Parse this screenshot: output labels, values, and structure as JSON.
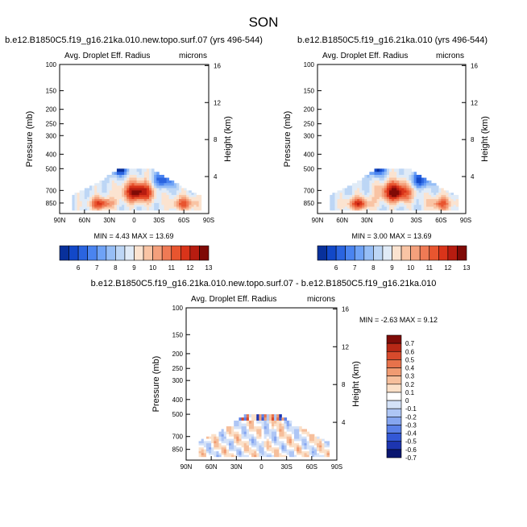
{
  "page": {
    "season": "SON"
  },
  "colors": {
    "left": [
      "#08309b",
      "#1248c8",
      "#2a64e0",
      "#4a84f0",
      "#6ea2f6",
      "#96bef6",
      "#bdd6f5",
      "#e0ebf7",
      "#fbe3d0",
      "#f9c4a4",
      "#f4a07c",
      "#ef7a55",
      "#e8552f",
      "#d9341a",
      "#b71c10",
      "#7f0a06"
    ],
    "diff": [
      "#0a1670",
      "#1d35b0",
      "#3358d6",
      "#5a80e8",
      "#86a6f0",
      "#aec6f5",
      "#d4e2f8",
      "#ffffff",
      "#fbe0c8",
      "#f6bf9c",
      "#f09b72",
      "#e7724b",
      "#d84a2c",
      "#b82816",
      "#7f0c08"
    ]
  },
  "chart_data": [
    {
      "type": "heatmap",
      "title": "b.e12.B1850C5.f19_g16.21ka.010.new.topo.surf.07 (yrs 496-544)",
      "subtitle": "Avg. Droplet Eff. Radius",
      "units": "microns",
      "xlabel": "",
      "ylabel": "Pressure (mb)",
      "ylabel_right": "Height (km)",
      "x_ticks": [
        "90N",
        "60N",
        "30N",
        "0",
        "30S",
        "60S",
        "90S"
      ],
      "y_ticks": [
        "100",
        "150",
        "200",
        "250",
        "300",
        "400",
        "500",
        "700",
        "850"
      ],
      "y_ticks_right": [
        "16",
        "12",
        "8",
        "4"
      ],
      "stats": {
        "min_label": "MIN =",
        "min": "4.43",
        "max_label": "MAX =",
        "max": "13.69"
      },
      "colorbar": [
        "6",
        "7",
        "8",
        "9",
        "10",
        "11",
        "12",
        "13"
      ]
    },
    {
      "type": "heatmap",
      "title": "b.e12.B1850C5.f19_g16.21ka.010 (yrs 496-544)",
      "subtitle": "Avg. Droplet Eff. Radius",
      "units": "microns",
      "xlabel": "",
      "ylabel": "Pressure (mb)",
      "ylabel_right": "Height (km)",
      "x_ticks": [
        "90N",
        "60N",
        "30N",
        "0",
        "30S",
        "60S",
        "90S"
      ],
      "y_ticks": [
        "100",
        "150",
        "200",
        "250",
        "300",
        "400",
        "500",
        "700",
        "850"
      ],
      "y_ticks_right": [
        "16",
        "12",
        "8",
        "4"
      ],
      "stats": {
        "min_label": "MIN =",
        "min": "3.00",
        "max_label": "MAX =",
        "max": "13.69"
      },
      "colorbar": [
        "6",
        "7",
        "8",
        "9",
        "10",
        "11",
        "12",
        "13"
      ]
    },
    {
      "type": "heatmap",
      "title": "b.e12.B1850C5.f19_g16.21ka.010.new.topo.surf.07 - b.e12.B1850C5.f19_g16.21ka.010",
      "subtitle": "Avg. Droplet Eff. Radius",
      "units": "microns",
      "xlabel": "",
      "ylabel": "Pressure (mb)",
      "ylabel_right": "Height (km)",
      "x_ticks": [
        "90N",
        "60N",
        "30N",
        "0",
        "30S",
        "60S",
        "90S"
      ],
      "y_ticks": [
        "100",
        "150",
        "200",
        "250",
        "300",
        "400",
        "500",
        "700",
        "850"
      ],
      "y_ticks_right": [
        "16",
        "12",
        "8",
        "4"
      ],
      "stats": {
        "min_label": "MIN =",
        "min": "-2.63",
        "max_label": "MAX =",
        "max": "9.12"
      },
      "colorbar": [
        "0.7",
        "0.6",
        "0.5",
        "0.4",
        "0.3",
        "0.2",
        "0.1",
        "0",
        "-0.1",
        "-0.2",
        "-0.3",
        "-0.4",
        "-0.5",
        "-0.6",
        "-0.7"
      ]
    }
  ]
}
